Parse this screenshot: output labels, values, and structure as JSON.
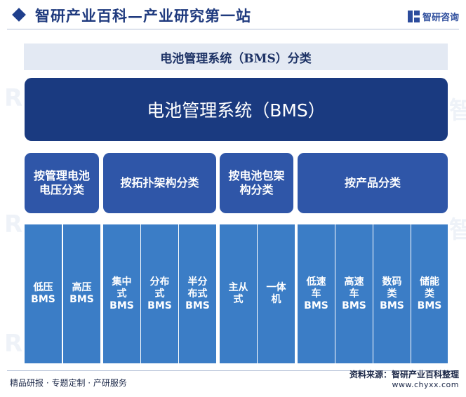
{
  "header": {
    "title": "智研产业百科—产业研究第一站",
    "logo_text": "智研咨询"
  },
  "subtitle": "电池管理系统（BMS）分类",
  "root": "电池管理系统（BMS）",
  "categories": [
    {
      "label": "按管理电池电压分类"
    },
    {
      "label": "按拓扑架构分类"
    },
    {
      "label": "按电池包架构分类"
    },
    {
      "label": "按产品分类"
    }
  ],
  "leaves": [
    "低压\nBMS",
    "高压\nBMS",
    "集中\n式\nBMS",
    "分布\n式\nBMS",
    "半分\n布式\nBMS",
    "主从\n式",
    "一体\n机",
    "低速\n车\nBMS",
    "高速\n车\nBMS",
    "数码\n类\nBMS",
    "储能\n类\nBMS"
  ],
  "footer": {
    "left": "精品研报 · 专题定制 · 产研服务",
    "source": "资料来源：智研产业百科整理",
    "url": "www.chyxx.com"
  },
  "colors": {
    "root": "#1a3a80",
    "category": "#2f56a8",
    "leaf": "#3b7dc6",
    "band": "#e3e9f3"
  }
}
